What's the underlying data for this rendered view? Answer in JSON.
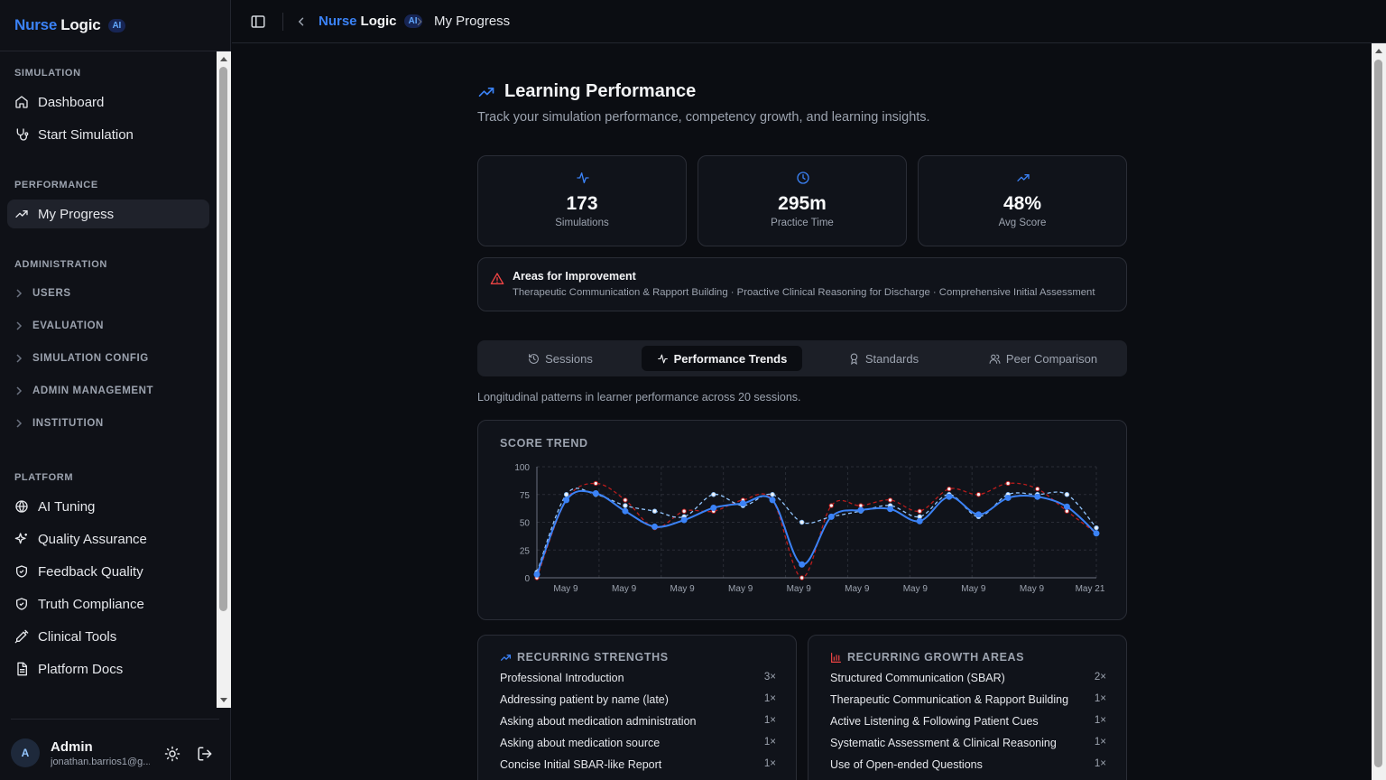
{
  "app": {
    "brand_part1": "Nurse",
    "brand_part2": "Logic",
    "ai_badge": "AI"
  },
  "sidebar": {
    "sections": {
      "simulation": "SIMULATION",
      "performance": "PERFORMANCE",
      "administration": "ADMINISTRATION",
      "platform": "PLATFORM"
    },
    "items": {
      "dashboard": "Dashboard",
      "start_simulation": "Start Simulation",
      "my_progress": "My Progress",
      "ai_tuning": "AI Tuning",
      "quality_assurance": "Quality Assurance",
      "feedback_quality": "Feedback Quality",
      "truth_compliance": "Truth Compliance",
      "clinical_tools": "Clinical Tools",
      "platform_docs": "Platform Docs"
    },
    "groups": {
      "users": "USERS",
      "evaluation": "EVALUATION",
      "simulation_config": "SIMULATION CONFIG",
      "admin_management": "ADMIN MANAGEMENT",
      "institution": "INSTITUTION"
    },
    "user": {
      "initial": "A",
      "name": "Admin",
      "email": "jonathan.barrios1@g..."
    }
  },
  "topbar": {
    "current_page": "My Progress"
  },
  "page": {
    "title": "Learning Performance",
    "subtitle": "Track your simulation performance, competency growth, and learning insights."
  },
  "stats": {
    "simulations": {
      "value": "173",
      "label": "Simulations"
    },
    "practice_time": {
      "value": "295m",
      "label": "Practice Time"
    },
    "avg_score": {
      "value": "48%",
      "label": "Avg Score"
    }
  },
  "improvement": {
    "title": "Areas for Improvement",
    "items": "Therapeutic Communication & Rapport Building · Proactive Clinical Reasoning for Discharge · Comprehensive Initial Assessment"
  },
  "tabs": {
    "sessions": "Sessions",
    "performance_trends": "Performance Trends",
    "standards": "Standards",
    "peer_comparison": "Peer Comparison"
  },
  "trend_note": "Longitudinal patterns in learner performance across 20 sessions.",
  "chart_title": "SCORE TREND",
  "chart_data": {
    "type": "line",
    "x": [
      "May 9",
      "May 9",
      "May 9",
      "May 9",
      "May 9",
      "May 9",
      "May 9",
      "May 9",
      "May 9",
      "May 9",
      "May 9",
      "May 9",
      "May 9",
      "May 9",
      "May 9",
      "May 9",
      "May 9",
      "May 9",
      "May 9",
      "May 21"
    ],
    "x_tick_labels": [
      "May 9",
      "May 9",
      "May 9",
      "May 9",
      "May 9",
      "May 9",
      "May 9",
      "May 9",
      "May 9",
      "May 21"
    ],
    "ylim": [
      0,
      100
    ],
    "y_ticks": [
      0,
      25,
      50,
      75,
      100
    ],
    "grid": true,
    "series": [
      {
        "values": [
          3,
          70,
          76,
          60,
          46,
          52,
          63,
          67,
          70,
          12,
          55,
          61,
          62,
          51,
          73,
          57,
          72,
          73,
          64,
          40
        ],
        "color": "#3b82f6",
        "style": "solid"
      },
      {
        "values": [
          5,
          75,
          75,
          65,
          60,
          55,
          75,
          65,
          75,
          50,
          55,
          60,
          65,
          55,
          75,
          55,
          75,
          75,
          75,
          45
        ],
        "color": "#93c5fd",
        "style": "dashed"
      },
      {
        "values": [
          0,
          70,
          85,
          70,
          45,
          60,
          60,
          70,
          70,
          0,
          65,
          65,
          70,
          60,
          80,
          75,
          85,
          80,
          60,
          40
        ],
        "color": "#b91c1c",
        "style": "dashed"
      }
    ]
  },
  "strengths": {
    "title": "RECURRING STRENGTHS",
    "items": [
      {
        "label": "Professional Introduction",
        "count": "3×"
      },
      {
        "label": "Addressing patient by name (late)",
        "count": "1×"
      },
      {
        "label": "Asking about medication administration",
        "count": "1×"
      },
      {
        "label": "Asking about medication source",
        "count": "1×"
      },
      {
        "label": "Concise Initial SBAR-like Report",
        "count": "1×"
      }
    ]
  },
  "growth": {
    "title": "RECURRING GROWTH AREAS",
    "items": [
      {
        "label": "Structured Communication (SBAR)",
        "count": "2×"
      },
      {
        "label": "Therapeutic Communication & Rapport Building",
        "count": "1×"
      },
      {
        "label": "Active Listening & Following Patient Cues",
        "count": "1×"
      },
      {
        "label": "Systematic Assessment & Clinical Reasoning",
        "count": "1×"
      },
      {
        "label": "Use of Open-ended Questions",
        "count": "1×"
      }
    ]
  },
  "colors": {
    "accent": "#3b82f6",
    "danger": "#ef4444",
    "background": "#0b0d12"
  }
}
